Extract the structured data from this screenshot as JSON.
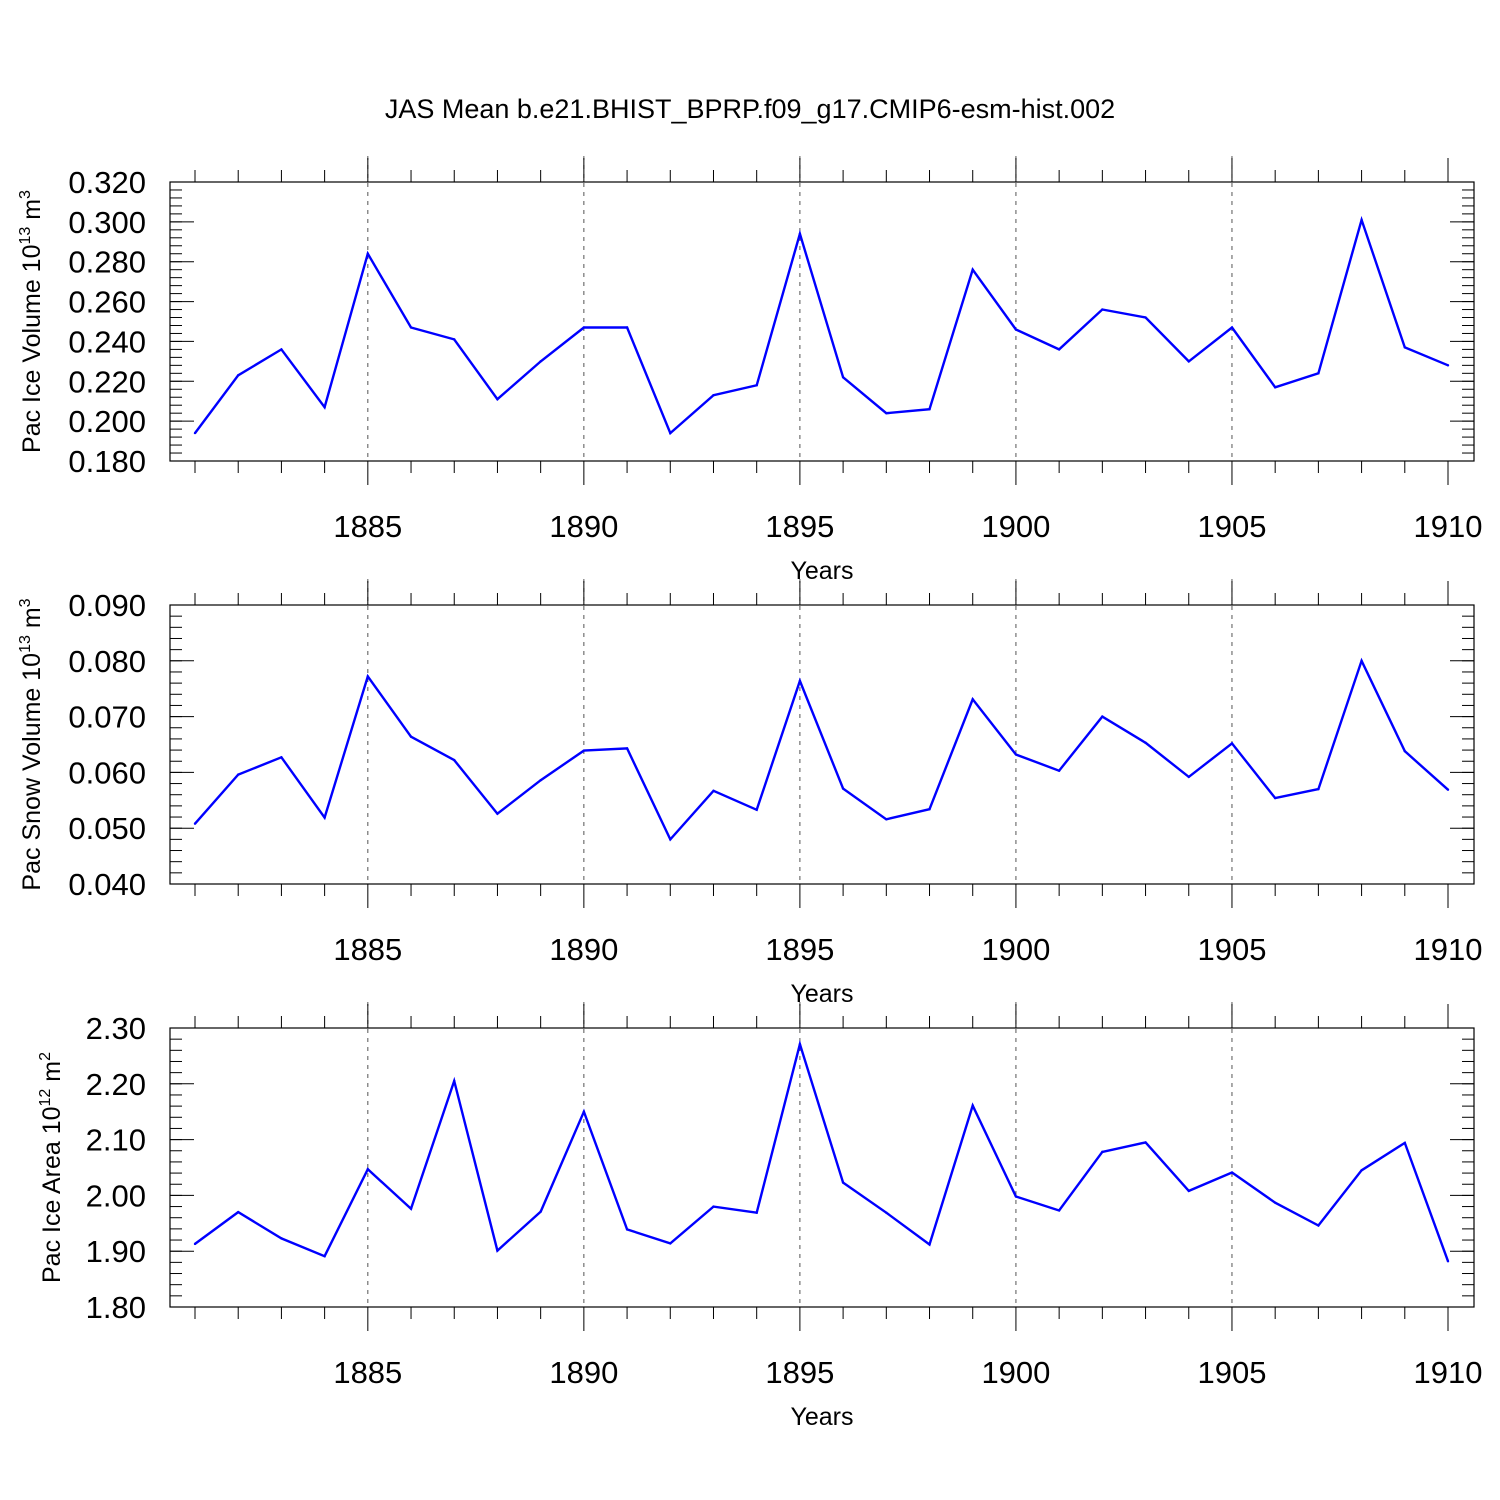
{
  "title": "JAS Mean b.e21.BHIST_BPRP.f09_g17.CMIP6-esm-hist.002",
  "colors": {
    "line": "#0000ff",
    "axis": "#000000",
    "grid": "#555555"
  },
  "chart_data": [
    {
      "type": "line",
      "ylabel": "Pac Ice Volume 10",
      "ylabel_sup": "13",
      "ylabel_unit": " m",
      "ylabel_unit_sup": "3",
      "xlabel": "Years",
      "xlim": [
        1881,
        1910
      ],
      "ylim": [
        0.18,
        0.32
      ],
      "yticks": [
        "0.180",
        "0.200",
        "0.220",
        "0.240",
        "0.260",
        "0.280",
        "0.300",
        "0.320"
      ],
      "xticks": [
        "1885",
        "1890",
        "1895",
        "1900",
        "1905",
        "1910"
      ],
      "grid": "vertical dashed at major year ticks",
      "x": [
        1881,
        1882,
        1883,
        1884,
        1885,
        1886,
        1887,
        1888,
        1889,
        1890,
        1891,
        1892,
        1893,
        1894,
        1895,
        1896,
        1897,
        1898,
        1899,
        1900,
        1901,
        1902,
        1903,
        1904,
        1905,
        1906,
        1907,
        1908,
        1909,
        1910
      ],
      "values": [
        0.194,
        0.223,
        0.236,
        0.207,
        0.284,
        0.247,
        0.241,
        0.211,
        0.23,
        0.247,
        0.247,
        0.194,
        0.213,
        0.218,
        0.294,
        0.222,
        0.204,
        0.206,
        0.276,
        0.246,
        0.236,
        0.256,
        0.252,
        0.23,
        0.247,
        0.217,
        0.224,
        0.301,
        0.237,
        0.228
      ]
    },
    {
      "type": "line",
      "ylabel": "Pac Snow Volume 10",
      "ylabel_sup": "13",
      "ylabel_unit": " m",
      "ylabel_unit_sup": "3",
      "xlabel": "Years",
      "xlim": [
        1881,
        1910
      ],
      "ylim": [
        0.04,
        0.09
      ],
      "yticks": [
        "0.040",
        "0.050",
        "0.060",
        "0.070",
        "0.080",
        "0.090"
      ],
      "xticks": [
        "1885",
        "1890",
        "1895",
        "1900",
        "1905",
        "1910"
      ],
      "grid": "vertical dashed at major year ticks",
      "x": [
        1881,
        1882,
        1883,
        1884,
        1885,
        1886,
        1887,
        1888,
        1889,
        1890,
        1891,
        1892,
        1893,
        1894,
        1895,
        1896,
        1897,
        1898,
        1899,
        1900,
        1901,
        1902,
        1903,
        1904,
        1905,
        1906,
        1907,
        1908,
        1909,
        1910
      ],
      "values": [
        0.0508,
        0.0596,
        0.0627,
        0.0519,
        0.0772,
        0.0664,
        0.0622,
        0.0526,
        0.0586,
        0.0639,
        0.0643,
        0.048,
        0.0567,
        0.0533,
        0.0764,
        0.0571,
        0.0516,
        0.0534,
        0.0731,
        0.0632,
        0.0603,
        0.07,
        0.0653,
        0.0592,
        0.0652,
        0.0554,
        0.057,
        0.08,
        0.0638,
        0.0569
      ]
    },
    {
      "type": "line",
      "ylabel": "Pac Ice Area 10",
      "ylabel_sup": "12",
      "ylabel_unit": " m",
      "ylabel_unit_sup": "2",
      "xlabel": "Years",
      "xlim": [
        1881,
        1910
      ],
      "ylim": [
        1.8,
        2.3
      ],
      "yticks": [
        "1.80",
        "1.90",
        "2.00",
        "2.10",
        "2.20",
        "2.30"
      ],
      "xticks": [
        "1885",
        "1890",
        "1895",
        "1900",
        "1905",
        "1910"
      ],
      "grid": "vertical dashed at major year ticks",
      "x": [
        1881,
        1882,
        1883,
        1884,
        1885,
        1886,
        1887,
        1888,
        1889,
        1890,
        1891,
        1892,
        1893,
        1894,
        1895,
        1896,
        1897,
        1898,
        1899,
        1900,
        1901,
        1902,
        1903,
        1904,
        1905,
        1906,
        1907,
        1908,
        1909,
        1910
      ],
      "values": [
        1.913,
        1.97,
        1.923,
        1.891,
        2.047,
        1.976,
        2.205,
        1.901,
        1.971,
        2.15,
        1.939,
        1.914,
        1.98,
        1.969,
        2.271,
        2.023,
        1.969,
        1.912,
        2.161,
        1.998,
        1.973,
        2.078,
        2.095,
        2.008,
        2.041,
        1.987,
        1.946,
        2.045,
        2.094,
        1.882
      ]
    }
  ]
}
